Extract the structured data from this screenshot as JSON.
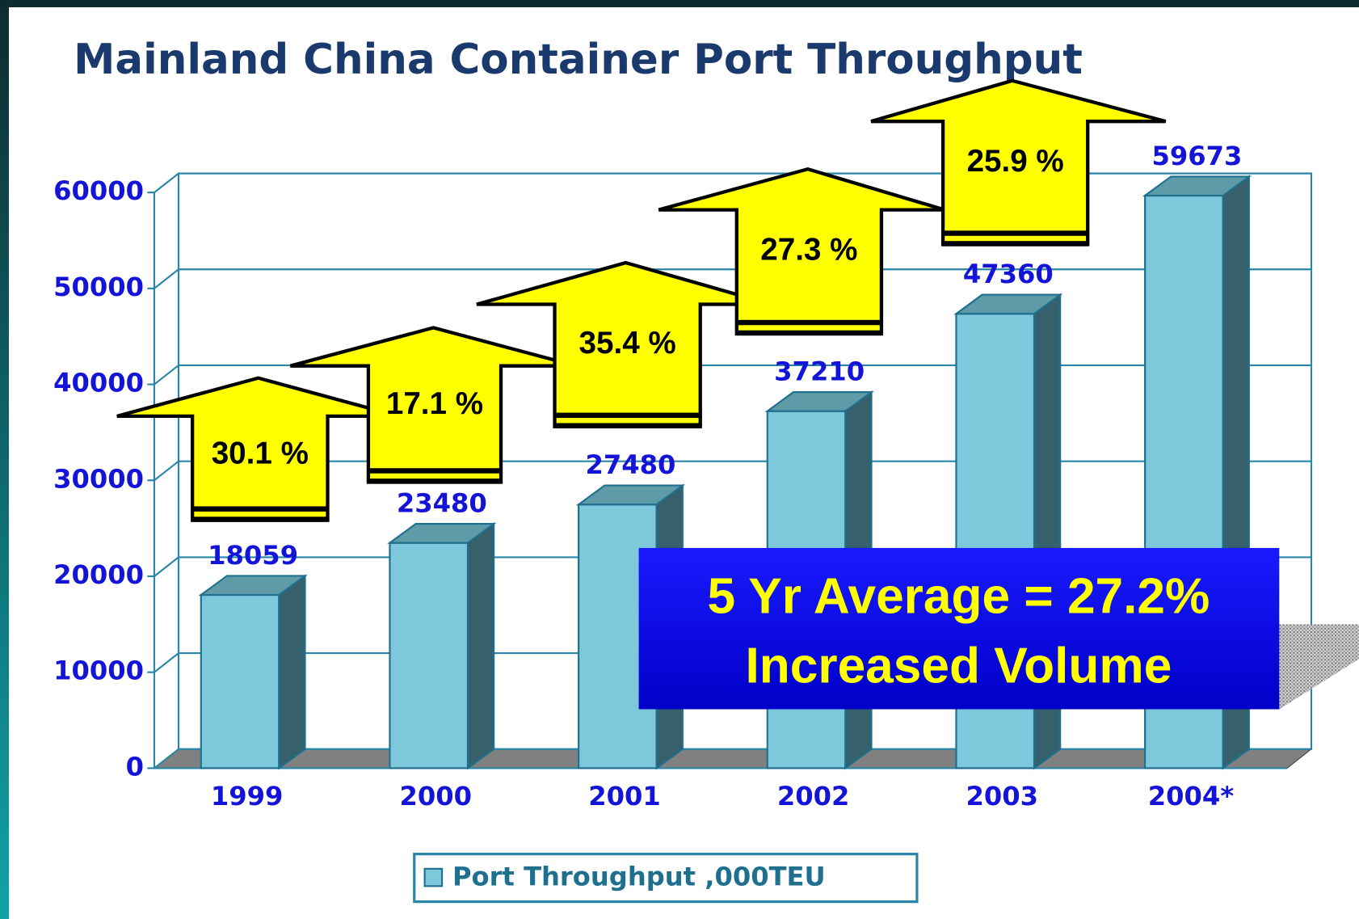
{
  "chart_data": {
    "type": "bar3d",
    "title": "Mainland China Container Port Throughput",
    "categories": [
      "1999",
      "2000",
      "2001",
      "2002",
      "2003",
      "2004*"
    ],
    "series": [
      {
        "name": "Port Throughput ,000TEU",
        "color": "#7ec8dc",
        "values": [
          18059,
          23480,
          27480,
          37210,
          47360,
          59673
        ]
      }
    ],
    "ylim": [
      0,
      60000
    ],
    "yticks": [
      0,
      10000,
      20000,
      30000,
      40000,
      50000,
      60000
    ],
    "grid": true,
    "legend": "bottom",
    "annotations": [
      "30.1 %",
      "17.1 %",
      "35.4 %",
      "27.3 %",
      "25.9 %"
    ],
    "callout": [
      "5 Yr Average = 27.2%",
      "Increased Volume"
    ]
  }
}
